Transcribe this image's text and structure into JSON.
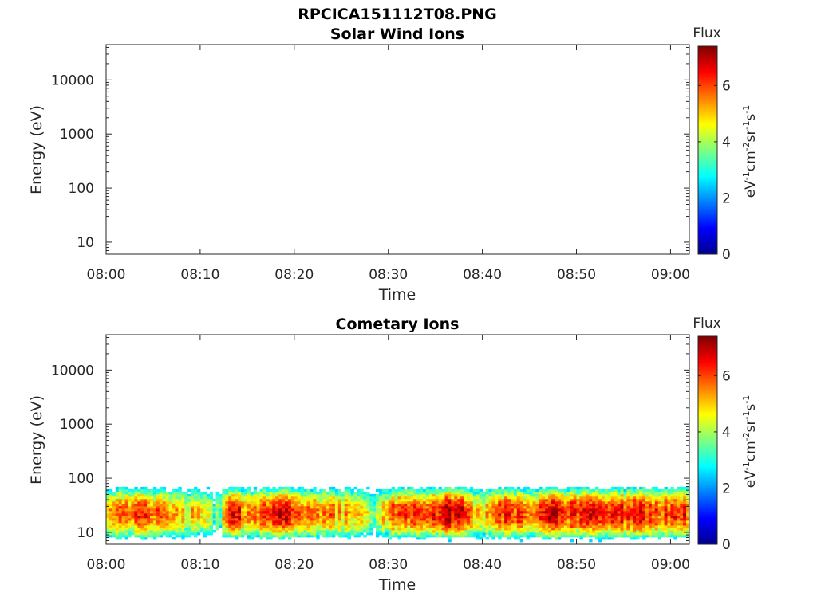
{
  "figure": {
    "title": "RPCICA151112T08.PNG"
  },
  "chart_data": [
    {
      "type": "heatmap",
      "title": "Solar Wind Ions",
      "xlabel": "Time",
      "ylabel": "Energy (eV)",
      "x_ticks": [
        "08:00",
        "08:10",
        "08:20",
        "08:30",
        "08:40",
        "08:50",
        "09:00"
      ],
      "x_range_minutes": [
        0,
        62
      ],
      "y_scale": "log",
      "y_ticks": [
        "10",
        "100",
        "1000",
        "10000"
      ],
      "ylim": [
        6,
        45000
      ],
      "colorbar": {
        "label": "Flux",
        "unit": "eV-1cm-2sr-1s-1",
        "ticks": [
          "0",
          "2",
          "4",
          "6"
        ],
        "range": [
          0,
          7.4
        ],
        "colormap": "jet"
      },
      "data": "empty"
    },
    {
      "type": "heatmap",
      "title": "Cometary Ions",
      "xlabel": "Time",
      "ylabel": "Energy (eV)",
      "x_ticks": [
        "08:00",
        "08:10",
        "08:20",
        "08:30",
        "08:40",
        "08:50",
        "09:00"
      ],
      "x_range_minutes": [
        0,
        62
      ],
      "y_scale": "log",
      "y_ticks": [
        "10",
        "100",
        "1000",
        "10000"
      ],
      "ylim": [
        6,
        45000
      ],
      "colorbar": {
        "label": "Flux",
        "unit": "eV-1cm-2sr-1s-1",
        "ticks": [
          "0",
          "2",
          "4",
          "6"
        ],
        "range": [
          0,
          7.4
        ],
        "colormap": "jet"
      },
      "energy_band_eV": [
        6,
        85
      ],
      "time_profile": [
        {
          "t": 0,
          "flux": 5.4
        },
        {
          "t": 2,
          "flux": 6.0
        },
        {
          "t": 4,
          "flux": 5.9
        },
        {
          "t": 6,
          "flux": 5.5
        },
        {
          "t": 8,
          "flux": 5.1
        },
        {
          "t": 10,
          "flux": 4.6
        },
        {
          "t": 12,
          "flux": 3.2
        },
        {
          "t": 13,
          "flux": 6.6
        },
        {
          "t": 15,
          "flux": 5.8
        },
        {
          "t": 17,
          "flux": 5.9
        },
        {
          "t": 19,
          "flux": 6.6
        },
        {
          "t": 21,
          "flux": 5.7
        },
        {
          "t": 23,
          "flux": 5.6
        },
        {
          "t": 25,
          "flux": 5.3
        },
        {
          "t": 27,
          "flux": 5.0
        },
        {
          "t": 28.5,
          "flux": 3.8
        },
        {
          "t": 30,
          "flux": 5.6
        },
        {
          "t": 32,
          "flux": 6.3
        },
        {
          "t": 34,
          "flux": 6.2
        },
        {
          "t": 36,
          "flux": 6.9
        },
        {
          "t": 38,
          "flux": 6.3
        },
        {
          "t": 40,
          "flux": 4.6
        },
        {
          "t": 42,
          "flux": 6.3
        },
        {
          "t": 44,
          "flux": 6.2
        },
        {
          "t": 46,
          "flux": 5.8
        },
        {
          "t": 47.5,
          "flux": 7.0
        },
        {
          "t": 49,
          "flux": 6.0
        },
        {
          "t": 51,
          "flux": 6.8
        },
        {
          "t": 53,
          "flux": 6.6
        },
        {
          "t": 55,
          "flux": 6.2
        },
        {
          "t": 57,
          "flux": 6.7
        },
        {
          "t": 59,
          "flux": 5.9
        },
        {
          "t": 61,
          "flux": 6.4
        },
        {
          "t": 62,
          "flux": 6.1
        }
      ]
    }
  ]
}
